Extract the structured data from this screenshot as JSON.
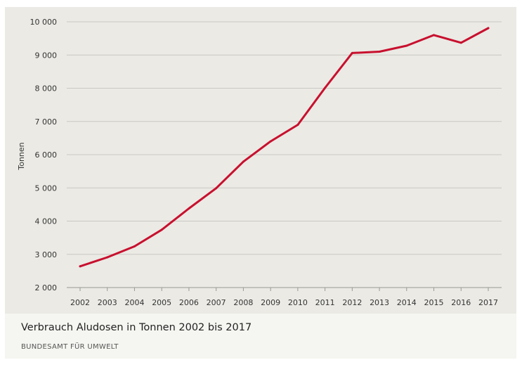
{
  "chart_data": {
    "type": "line",
    "title": "Verbrauch Aludosen in Tonnen 2002 bis 2017",
    "source": "BUNDESAMT FÜR UMWELT",
    "ylabel": "Tonnen",
    "xlabel": "",
    "ylim": [
      2000,
      10000
    ],
    "yticks": [
      2000,
      3000,
      4000,
      5000,
      6000,
      7000,
      8000,
      9000,
      10000
    ],
    "ytick_labels": [
      "2 000",
      "3 000",
      "4 000",
      "5 000",
      "6 000",
      "7 000",
      "8 000",
      "9 000",
      "10 000"
    ],
    "grid": true,
    "legend": "none",
    "line_color": "#c8102e",
    "x": [
      "2002",
      "2003",
      "2004",
      "2005",
      "2006",
      "2007",
      "2008",
      "2009",
      "2010",
      "2011",
      "2012",
      "2013",
      "2014",
      "2015",
      "2016",
      "2017"
    ],
    "series": [
      {
        "values": [
          2640,
          2910,
          3240,
          3740,
          4380,
          4990,
          5790,
          6400,
          6900,
          8010,
          9060,
          9100,
          9280,
          9600,
          9370,
          9810
        ]
      }
    ]
  }
}
